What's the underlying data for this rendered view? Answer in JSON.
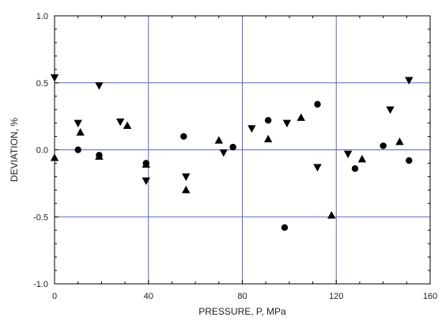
{
  "chart_data": {
    "type": "scatter",
    "xlabel": "PRESSURE, P, MPa",
    "ylabel": "DEVIATION, %",
    "xlim": [
      0,
      160
    ],
    "ylim": [
      -1.0,
      1.0
    ],
    "x_ticks": [
      "0",
      "40",
      "80",
      "120",
      "160"
    ],
    "y_ticks": [
      "1.0",
      "0.5",
      "0.0",
      "-0.5",
      "-1.0"
    ],
    "grid": "major lines at x = 40, 80, 120 and y = 0.5, 0.0, -0.5",
    "colors": {
      "grid": "#5a66c8",
      "marker": "#000000",
      "frame": "#000000"
    },
    "series": [
      {
        "marker": "circle",
        "points": [
          [
            10,
            0.0
          ],
          [
            19,
            -0.04
          ],
          [
            39,
            -0.1
          ],
          [
            55,
            0.1
          ],
          [
            76,
            0.02
          ],
          [
            91,
            0.22
          ],
          [
            98,
            -0.58
          ],
          [
            112,
            0.34
          ],
          [
            128,
            -0.14
          ],
          [
            140,
            0.03
          ],
          [
            151,
            -0.08
          ]
        ]
      },
      {
        "marker": "triangle-up",
        "points": [
          [
            0,
            -0.06
          ],
          [
            11,
            0.13
          ],
          [
            19,
            -0.05
          ],
          [
            31,
            0.18
          ],
          [
            39,
            -0.11
          ],
          [
            56,
            -0.3
          ],
          [
            70,
            0.07
          ],
          [
            91,
            0.08
          ],
          [
            105,
            0.24
          ],
          [
            118,
            -0.49
          ],
          [
            131,
            -0.07
          ],
          [
            147,
            0.06
          ]
        ]
      },
      {
        "marker": "triangle-down",
        "points": [
          [
            0,
            0.54
          ],
          [
            10,
            0.2
          ],
          [
            19,
            0.48
          ],
          [
            28,
            0.21
          ],
          [
            39,
            -0.23
          ],
          [
            56,
            -0.2
          ],
          [
            72,
            -0.02
          ],
          [
            84,
            0.16
          ],
          [
            99,
            0.2
          ],
          [
            112,
            -0.13
          ],
          [
            125,
            -0.03
          ],
          [
            143,
            0.3
          ],
          [
            151,
            0.52
          ]
        ]
      }
    ]
  }
}
